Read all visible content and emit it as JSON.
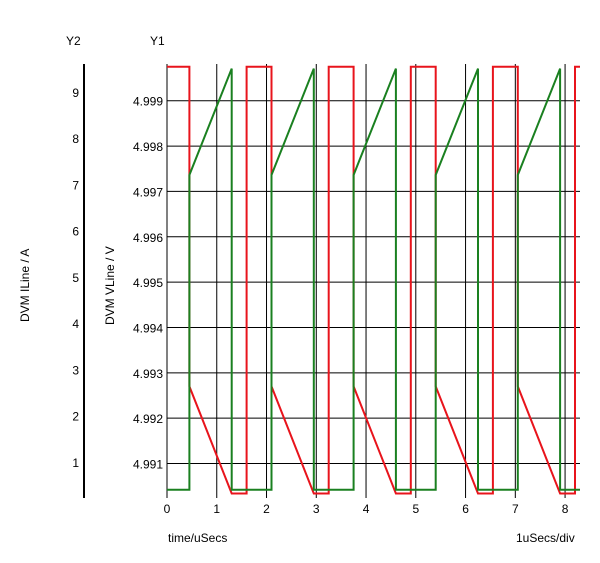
{
  "chart_data": {
    "type": "line",
    "xlabel": "time/uSecs",
    "x_scale_label": "1uSecs/div",
    "xlim": [
      0,
      8.3
    ],
    "xticks": [
      0,
      1,
      2,
      3,
      4,
      5,
      6,
      7,
      8
    ],
    "y1": {
      "axis_name": "Y1",
      "label": "DVM VLine / V",
      "lim": [
        4.99024,
        4.99981
      ],
      "ticks": [
        4.991,
        4.992,
        4.993,
        4.994,
        4.995,
        4.996,
        4.997,
        4.998,
        4.999
      ],
      "tick_labels": [
        "4.991",
        "4.992",
        "4.993",
        "4.994",
        "4.995",
        "4.996",
        "4.997",
        "4.998",
        "4.999"
      ]
    },
    "y2": {
      "axis_name": "Y2",
      "label": "DVM ILine / A",
      "lim": [
        0.22,
        9.6
      ],
      "ticks": [
        1,
        2,
        3,
        4,
        5,
        6,
        7,
        8,
        9
      ],
      "tick_labels": [
        "1",
        "2",
        "3",
        "4",
        "5",
        "6",
        "7",
        "8",
        "9"
      ]
    },
    "grid": true,
    "series": [
      {
        "axis": "y1",
        "color": "#e8141c",
        "points": [
          [
            0,
            4.99975
          ],
          [
            0.45,
            4.99975
          ],
          [
            0.45,
            4.9927
          ],
          [
            1.3,
            4.99034
          ],
          [
            1.3,
            4.99034
          ],
          [
            1.6,
            4.99034
          ],
          [
            1.6,
            4.99975
          ],
          [
            2.1,
            4.99975
          ],
          [
            2.1,
            4.9927
          ],
          [
            2.95,
            4.99034
          ],
          [
            3.25,
            4.99034
          ],
          [
            3.25,
            4.99975
          ],
          [
            3.75,
            4.99975
          ],
          [
            3.75,
            4.9927
          ],
          [
            4.6,
            4.99034
          ],
          [
            4.9,
            4.99034
          ],
          [
            4.9,
            4.99975
          ],
          [
            5.4,
            4.99975
          ],
          [
            5.4,
            4.9927
          ],
          [
            6.25,
            4.99034
          ],
          [
            6.55,
            4.99034
          ],
          [
            6.55,
            4.99975
          ],
          [
            7.05,
            4.99975
          ],
          [
            7.05,
            4.9927
          ],
          [
            7.9,
            4.99034
          ],
          [
            8.2,
            4.99034
          ],
          [
            8.2,
            4.99975
          ],
          [
            8.3,
            4.99975
          ]
        ]
      },
      {
        "axis": "y2",
        "color": "#1a8020",
        "points": [
          [
            0,
            0.4
          ],
          [
            0.45,
            0.4
          ],
          [
            0.45,
            7.2
          ],
          [
            1.3,
            9.5
          ],
          [
            1.3,
            0.4
          ],
          [
            2.1,
            0.4
          ],
          [
            2.1,
            7.2
          ],
          [
            2.95,
            9.5
          ],
          [
            2.95,
            0.4
          ],
          [
            3.75,
            0.4
          ],
          [
            3.75,
            7.2
          ],
          [
            4.6,
            9.5
          ],
          [
            4.6,
            0.4
          ],
          [
            5.4,
            0.4
          ],
          [
            5.4,
            7.2
          ],
          [
            6.25,
            9.5
          ],
          [
            6.25,
            0.4
          ],
          [
            7.05,
            0.4
          ],
          [
            7.05,
            7.2
          ],
          [
            7.9,
            9.5
          ],
          [
            7.9,
            0.4
          ],
          [
            8.3,
            0.4
          ]
        ]
      }
    ]
  }
}
